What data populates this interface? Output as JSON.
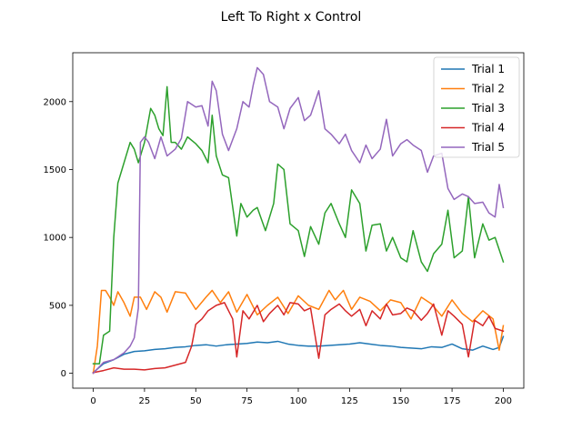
{
  "chart_data": {
    "type": "line",
    "title": "Left To Right x Control",
    "xlabel": "",
    "ylabel": "",
    "xlim": [
      -10,
      210
    ],
    "ylim": [
      -110,
      2360
    ],
    "xticks": [
      0,
      25,
      50,
      75,
      100,
      125,
      150,
      175,
      200
    ],
    "yticks": [
      0,
      500,
      1000,
      1500,
      2000
    ],
    "grid": false,
    "legend": "top-right",
    "series": [
      {
        "name": "Trial 1",
        "color": "#1f77b4",
        "x": [
          0,
          5,
          10,
          15,
          20,
          25,
          30,
          35,
          40,
          45,
          50,
          55,
          60,
          65,
          70,
          75,
          80,
          85,
          90,
          95,
          100,
          105,
          110,
          115,
          120,
          125,
          130,
          135,
          140,
          145,
          150,
          155,
          160,
          165,
          170,
          175,
          180,
          185,
          190,
          195,
          198,
          200
        ],
        "y": [
          5,
          70,
          100,
          140,
          160,
          165,
          175,
          180,
          190,
          195,
          205,
          210,
          200,
          210,
          215,
          220,
          230,
          225,
          235,
          215,
          205,
          200,
          200,
          205,
          210,
          215,
          225,
          215,
          205,
          200,
          190,
          185,
          180,
          195,
          190,
          215,
          180,
          170,
          200,
          175,
          190,
          270
        ]
      },
      {
        "name": "Trial 2",
        "color": "#ff7f0e",
        "x": [
          0,
          2,
          4,
          6,
          8,
          10,
          12,
          15,
          18,
          20,
          23,
          26,
          30,
          33,
          36,
          40,
          45,
          50,
          55,
          58,
          62,
          66,
          70,
          75,
          80,
          85,
          90,
          95,
          100,
          105,
          110,
          115,
          118,
          122,
          126,
          130,
          135,
          140,
          145,
          150,
          155,
          160,
          165,
          170,
          175,
          180,
          185,
          190,
          195,
          198,
          200
        ],
        "y": [
          0,
          200,
          610,
          610,
          560,
          500,
          600,
          520,
          420,
          560,
          560,
          470,
          600,
          560,
          450,
          600,
          590,
          470,
          560,
          610,
          520,
          600,
          450,
          580,
          430,
          500,
          560,
          440,
          570,
          500,
          470,
          610,
          540,
          610,
          470,
          560,
          530,
          460,
          540,
          520,
          400,
          560,
          510,
          420,
          540,
          440,
          380,
          460,
          400,
          170,
          350
        ]
      },
      {
        "name": "Trial 3",
        "color": "#2ca02c",
        "x": [
          0,
          3,
          5,
          8,
          10,
          12,
          14,
          16,
          18,
          20,
          22,
          25,
          28,
          30,
          32,
          34,
          36,
          38,
          40,
          43,
          46,
          50,
          53,
          56,
          58,
          60,
          63,
          66,
          70,
          72,
          75,
          78,
          80,
          84,
          88,
          90,
          93,
          96,
          100,
          103,
          106,
          110,
          113,
          116,
          120,
          123,
          126,
          130,
          133,
          136,
          140,
          143,
          146,
          150,
          153,
          156,
          160,
          163,
          166,
          170,
          173,
          176,
          180,
          183,
          186,
          190,
          193,
          196,
          200
        ],
        "y": [
          70,
          70,
          280,
          310,
          1000,
          1400,
          1500,
          1600,
          1700,
          1650,
          1550,
          1700,
          1950,
          1900,
          1800,
          1750,
          2110,
          1700,
          1700,
          1650,
          1740,
          1690,
          1640,
          1550,
          1900,
          1600,
          1460,
          1440,
          1010,
          1250,
          1150,
          1200,
          1220,
          1050,
          1250,
          1540,
          1500,
          1100,
          1050,
          860,
          1080,
          950,
          1180,
          1250,
          1100,
          1000,
          1350,
          1250,
          900,
          1090,
          1100,
          900,
          1000,
          850,
          820,
          1050,
          820,
          750,
          880,
          950,
          1200,
          850,
          900,
          1300,
          850,
          1100,
          980,
          1000,
          820
        ]
      },
      {
        "name": "Trial 4",
        "color": "#d62728",
        "x": [
          0,
          5,
          10,
          15,
          20,
          25,
          30,
          35,
          40,
          45,
          48,
          50,
          53,
          56,
          60,
          64,
          68,
          70,
          73,
          76,
          80,
          83,
          86,
          90,
          93,
          96,
          100,
          103,
          106,
          110,
          113,
          116,
          120,
          123,
          126,
          130,
          133,
          136,
          140,
          143,
          146,
          150,
          153,
          156,
          160,
          163,
          166,
          170,
          173,
          176,
          180,
          183,
          186,
          190,
          193,
          196,
          200
        ],
        "y": [
          5,
          20,
          40,
          30,
          30,
          25,
          35,
          40,
          60,
          80,
          200,
          360,
          400,
          460,
          500,
          520,
          400,
          120,
          460,
          400,
          500,
          380,
          440,
          500,
          430,
          520,
          510,
          460,
          480,
          110,
          430,
          470,
          510,
          460,
          420,
          470,
          350,
          460,
          400,
          510,
          430,
          440,
          480,
          460,
          390,
          440,
          510,
          280,
          460,
          420,
          360,
          120,
          390,
          350,
          420,
          330,
          310
        ]
      },
      {
        "name": "Trial 5",
        "color": "#9467bd",
        "x": [
          0,
          5,
          10,
          15,
          18,
          20,
          22,
          23,
          25,
          27,
          30,
          33,
          36,
          40,
          43,
          46,
          50,
          53,
          56,
          58,
          60,
          63,
          66,
          70,
          73,
          76,
          78,
          80,
          83,
          86,
          90,
          93,
          96,
          100,
          103,
          106,
          110,
          113,
          116,
          120,
          123,
          126,
          130,
          133,
          136,
          140,
          143,
          146,
          150,
          153,
          156,
          160,
          163,
          166,
          170,
          173,
          176,
          180,
          183,
          186,
          190,
          193,
          196,
          198,
          200
        ],
        "y": [
          0,
          80,
          100,
          150,
          200,
          260,
          480,
          1700,
          1740,
          1700,
          1580,
          1740,
          1600,
          1650,
          1730,
          2000,
          1960,
          1970,
          1820,
          2150,
          2080,
          1760,
          1640,
          1800,
          2000,
          1960,
          2120,
          2250,
          2200,
          2000,
          1960,
          1800,
          1950,
          2030,
          1860,
          1900,
          2080,
          1800,
          1760,
          1690,
          1760,
          1640,
          1550,
          1680,
          1580,
          1650,
          1870,
          1600,
          1690,
          1720,
          1680,
          1640,
          1480,
          1600,
          1620,
          1360,
          1280,
          1320,
          1300,
          1250,
          1260,
          1180,
          1150,
          1390,
          1220
        ]
      }
    ]
  }
}
